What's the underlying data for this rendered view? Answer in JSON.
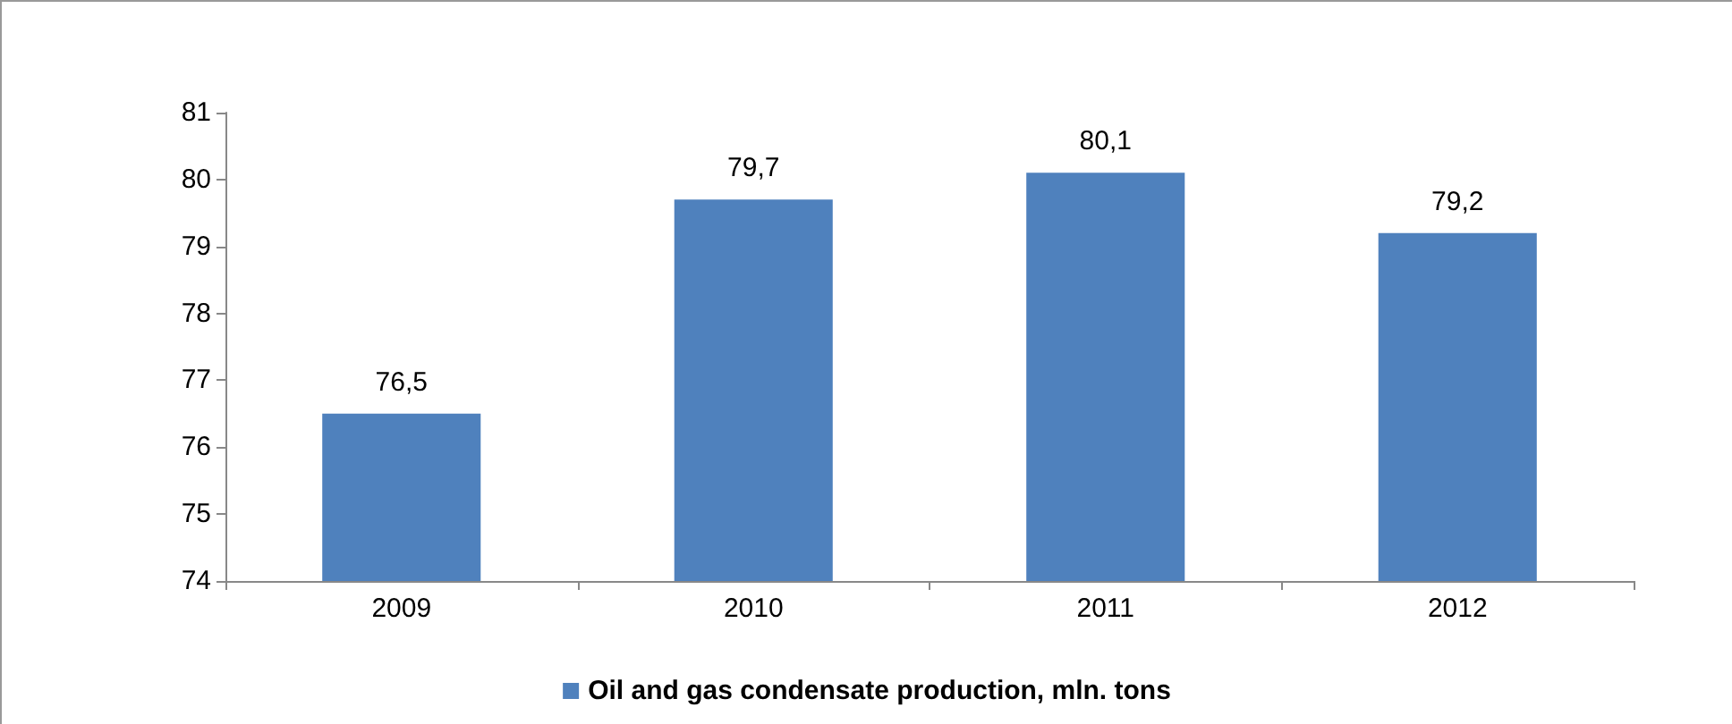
{
  "chart_data": {
    "type": "bar",
    "categories": [
      "2009",
      "2010",
      "2011",
      "2012"
    ],
    "series": [
      {
        "name": "Oil and gas condensate production, mln. tons",
        "color": "#4f81bd",
        "values": [
          76.5,
          79.7,
          80.1,
          79.2
        ],
        "value_labels": [
          "76,5",
          "79,7",
          "80,1",
          "79,2"
        ]
      }
    ],
    "ylim": [
      74,
      81
    ],
    "yticks": [
      74,
      75,
      76,
      77,
      78,
      79,
      80,
      81
    ],
    "grid": false,
    "legend": "bottom"
  }
}
